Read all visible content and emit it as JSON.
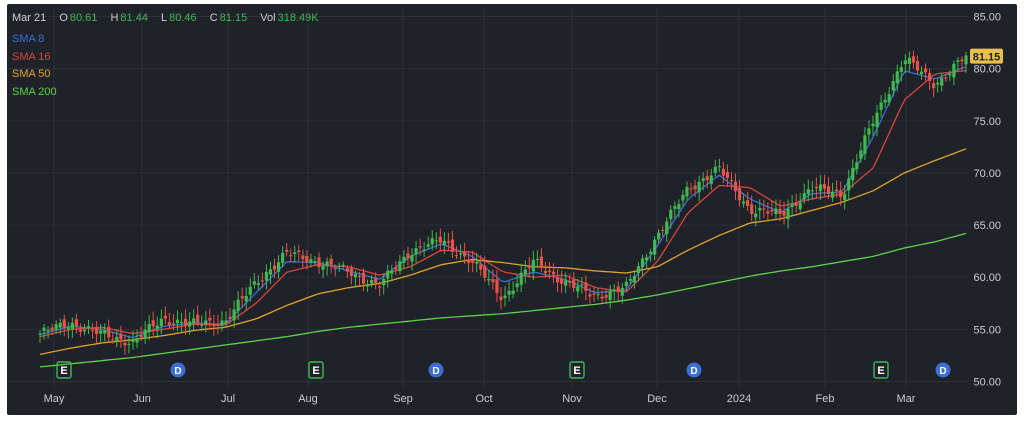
{
  "ohlc_header": {
    "date": "Mar 21",
    "open_label": "O",
    "open": "80.61",
    "high_label": "H",
    "high": "81.44",
    "low_label": "L",
    "low": "80.46",
    "close_label": "C",
    "close": "81.15",
    "vol_label": "Vol",
    "volume": "318.49K"
  },
  "legend": [
    {
      "label": "SMA 8",
      "color": "#3b6fd6"
    },
    {
      "label": "SMA 16",
      "color": "#d9453d"
    },
    {
      "label": "SMA 50",
      "color": "#e0a32a"
    },
    {
      "label": "SMA 200",
      "color": "#5fd14a"
    }
  ],
  "last_price_tag": "81.15",
  "colors": {
    "background": "#1f2229",
    "grid": "#2c3038",
    "up": "#3fb950",
    "down": "#e5534b",
    "marker_e": "#3fb950",
    "marker_d": "#3b6fd6",
    "axis_text": "#c9ccd2",
    "price_tag": "#e7c14a"
  },
  "chart_data": {
    "type": "candlestick",
    "x_tick_labels": [
      "May",
      "Jun",
      "Jul",
      "Aug",
      "Sep",
      "Oct",
      "Nov",
      "Dec",
      "2024",
      "Feb",
      "Mar"
    ],
    "y_tick_labels": [
      "85.00",
      "80.00",
      "75.00",
      "70.00",
      "65.00",
      "60.00",
      "55.00",
      "50.00"
    ],
    "ylim": [
      50,
      85
    ],
    "grid": true,
    "price_waypoints": [
      [
        "May",
        54.6
      ],
      [
        "mid-May",
        55.6
      ],
      [
        "late May",
        54.5
      ],
      [
        "Jun",
        53.8
      ],
      [
        "mid-Jun",
        56.0
      ],
      [
        "late Jun",
        55.5
      ],
      [
        "Jul",
        55.8
      ],
      [
        "mid-Jul",
        59.5
      ],
      [
        "late Jul",
        62.3
      ],
      [
        "Aug",
        61.5
      ],
      [
        "mid-Aug",
        60.5
      ],
      [
        "late Aug",
        59.2
      ],
      [
        "Sep",
        62.5
      ],
      [
        "mid-Sep",
        63.5
      ],
      [
        "late Sep",
        61.5
      ],
      [
        "Oct",
        58.0
      ],
      [
        "mid-Oct",
        61.5
      ],
      [
        "late Oct",
        59.5
      ],
      [
        "Nov",
        58.2
      ],
      [
        "mid-Nov",
        59.0
      ],
      [
        "Dec",
        64.0
      ],
      [
        "mid-Dec",
        68.5
      ],
      [
        "late Dec",
        70.4
      ],
      [
        "2024",
        66.5
      ],
      [
        "mid-Jan",
        66.0
      ],
      [
        "Feb",
        68.5
      ],
      [
        "mid-Feb",
        68.0
      ],
      [
        "late Feb",
        75.0
      ],
      [
        "Mar",
        81.0
      ],
      [
        "mid-Mar",
        78.5
      ],
      [
        "Mar 21",
        81.15
      ]
    ],
    "series": [
      {
        "name": "SMA 8",
        "color": "#3b6fd6",
        "waypoints": [
          54.5,
          55.3,
          55.0,
          54.2,
          55.3,
          55.6,
          55.5,
          58.5,
          61.5,
          61.4,
          60.6,
          59.8,
          62.0,
          63.2,
          62.0,
          59.5,
          60.5,
          59.8,
          58.5,
          58.8,
          63.0,
          67.5,
          69.8,
          67.5,
          66.2,
          68.0,
          68.2,
          73.5,
          79.8,
          79.0,
          80.2
        ]
      },
      {
        "name": "SMA 16",
        "color": "#d9453d",
        "waypoints": [
          54.3,
          55.0,
          55.2,
          54.6,
          55.0,
          55.5,
          55.4,
          57.5,
          60.5,
          61.2,
          61.0,
          60.2,
          61.0,
          62.6,
          62.4,
          60.5,
          60.0,
          60.2,
          59.0,
          58.6,
          61.5,
          66.2,
          68.8,
          68.6,
          66.8,
          67.5,
          68.0,
          70.5,
          77.0,
          79.5,
          79.8
        ]
      },
      {
        "name": "SMA 50",
        "color": "#e0a32a",
        "waypoints": [
          52.6,
          53.2,
          53.7,
          54.0,
          54.4,
          54.9,
          55.2,
          56.0,
          57.3,
          58.4,
          59.0,
          59.4,
          60.2,
          61.2,
          61.7,
          61.4,
          61.0,
          60.9,
          60.6,
          60.4,
          61.0,
          62.6,
          64.0,
          65.2,
          65.6,
          66.4,
          67.2,
          68.3,
          70.0,
          71.2,
          72.3
        ]
      },
      {
        "name": "SMA 200",
        "color": "#5fd14a",
        "waypoints": [
          51.4,
          51.7,
          52.0,
          52.3,
          52.7,
          53.1,
          53.5,
          53.9,
          54.3,
          54.8,
          55.2,
          55.5,
          55.8,
          56.1,
          56.3,
          56.5,
          56.8,
          57.1,
          57.4,
          57.8,
          58.3,
          58.9,
          59.5,
          60.1,
          60.6,
          61.0,
          61.5,
          62.0,
          62.8,
          63.4,
          64.2
        ]
      }
    ],
    "event_markers": [
      {
        "label": "E",
        "month_position": "early May"
      },
      {
        "label": "D",
        "month_position": "mid Jun"
      },
      {
        "label": "E",
        "month_position": "early Aug"
      },
      {
        "label": "D",
        "month_position": "mid Sep"
      },
      {
        "label": "E",
        "month_position": "early Nov"
      },
      {
        "label": "D",
        "month_position": "mid Dec"
      },
      {
        "label": "E",
        "month_position": "late Feb"
      },
      {
        "label": "D",
        "month_position": "mid Mar"
      }
    ]
  }
}
